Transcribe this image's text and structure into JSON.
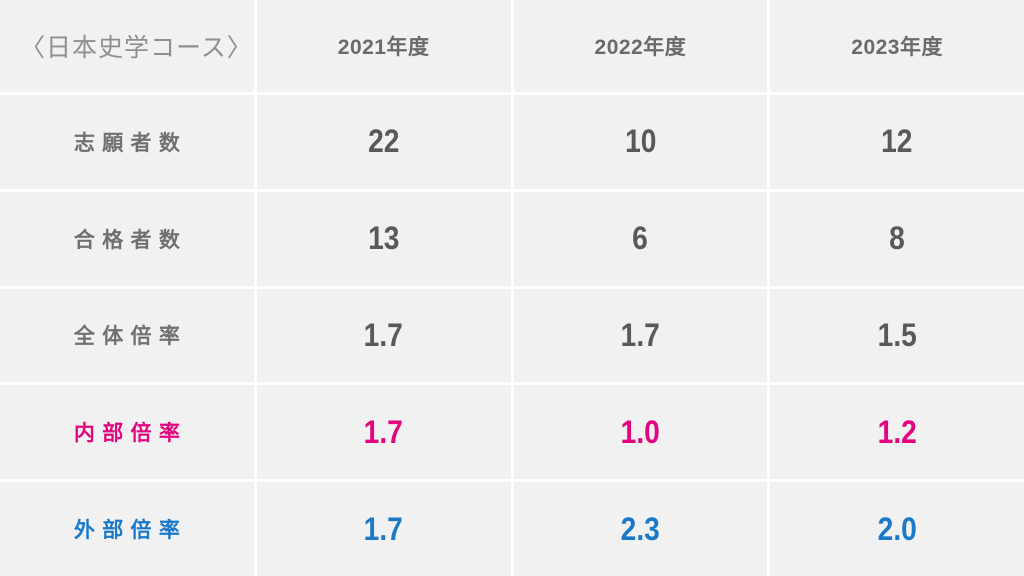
{
  "page": {
    "title": "〈日本史学コース〉",
    "columns": [
      "2021年度",
      "2022年度",
      "2023年度"
    ],
    "rows": [
      {
        "label": "志願者数",
        "values": [
          "22",
          "10",
          "12"
        ],
        "accent": "gray"
      },
      {
        "label": "合格者数",
        "values": [
          "13",
          "6",
          "8"
        ],
        "accent": "gray"
      },
      {
        "label": "全体倍率",
        "values": [
          "1.7",
          "1.7",
          "1.5"
        ],
        "accent": "gray"
      },
      {
        "label": "内部倍率",
        "values": [
          "1.7",
          "1.0",
          "1.2"
        ],
        "accent": "pink"
      },
      {
        "label": "外部倍率",
        "values": [
          "1.7",
          "2.3",
          "2.0"
        ],
        "accent": "blue"
      }
    ],
    "colors": {
      "pink": "#e3047f",
      "blue": "#1b79c9",
      "gray_text": "#58595b",
      "label_gray": "#707070",
      "header_gray": "#6a6a6a",
      "title_gray": "#8f8f8f",
      "cell_bg": "#f1f1f2",
      "gutter": "#ffffff"
    }
  },
  "chart_data": {
    "type": "table",
    "title": "〈日本史学コース〉",
    "columns": [
      "2021年度",
      "2022年度",
      "2023年度"
    ],
    "rows": [
      {
        "label": "志願者数",
        "values": [
          22,
          10,
          12
        ]
      },
      {
        "label": "合格者数",
        "values": [
          13,
          6,
          8
        ]
      },
      {
        "label": "全体倍率",
        "values": [
          1.7,
          1.7,
          1.5
        ]
      },
      {
        "label": "内部倍率",
        "values": [
          1.7,
          1.0,
          1.2
        ]
      },
      {
        "label": "外部倍率",
        "values": [
          1.7,
          2.3,
          2.0
        ]
      }
    ],
    "layout": {
      "header_row": true,
      "accent_rows": {
        "内部倍率": "pink",
        "外部倍率": "blue"
      }
    }
  }
}
